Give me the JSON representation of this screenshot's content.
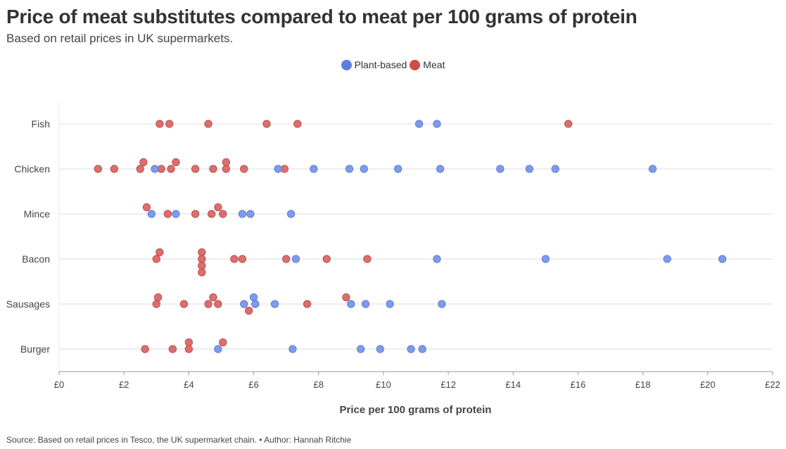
{
  "title": "Price of meat substitutes compared to meat per 100 grams of protein",
  "subtitle": "Based on retail prices in UK supermarkets.",
  "source": "Source: Based on retail prices in Tesco, the UK supermarket chain. • Author: Hannah Ritchie",
  "legend": [
    {
      "label": "Plant-based",
      "color": "#5b7fe0"
    },
    {
      "label": "Meat",
      "color": "#d04a4a"
    }
  ],
  "colors": {
    "plant": "#7e9aeb",
    "plant_stroke": "#5a78d6",
    "meat": "#dc6e6e",
    "meat_stroke": "#b84848",
    "grid": "#e8e8e8",
    "axis": "#999999"
  },
  "chart_data": {
    "type": "scatter",
    "title": "Price of meat substitutes compared to meat per 100 grams of protein",
    "xlabel": "Price per 100 grams of protein",
    "ylabel": "",
    "xlim": [
      0,
      22
    ],
    "x_ticks": [
      0,
      2,
      4,
      6,
      8,
      10,
      12,
      14,
      16,
      18,
      20,
      22
    ],
    "x_tick_labels": [
      "£0",
      "£2",
      "£4",
      "£6",
      "£8",
      "£10",
      "£12",
      "£14",
      "£16",
      "£18",
      "£20",
      "£22"
    ],
    "categories": [
      "Fish",
      "Chicken",
      "Mince",
      "Bacon",
      "Sausages",
      "Burger"
    ],
    "series": [
      {
        "name": "Meat",
        "points": [
          {
            "category": "Fish",
            "x": 3.1,
            "jitter": 0
          },
          {
            "category": "Fish",
            "x": 3.4,
            "jitter": 0
          },
          {
            "category": "Fish",
            "x": 4.6,
            "jitter": 0
          },
          {
            "category": "Fish",
            "x": 6.4,
            "jitter": 0
          },
          {
            "category": "Fish",
            "x": 7.35,
            "jitter": 0
          },
          {
            "category": "Fish",
            "x": 15.7,
            "jitter": 0
          },
          {
            "category": "Chicken",
            "x": 1.2,
            "jitter": 0
          },
          {
            "category": "Chicken",
            "x": 1.7,
            "jitter": 0
          },
          {
            "category": "Chicken",
            "x": 2.5,
            "jitter": 0
          },
          {
            "category": "Chicken",
            "x": 2.6,
            "jitter": -1
          },
          {
            "category": "Chicken",
            "x": 3.15,
            "jitter": 0
          },
          {
            "category": "Chicken",
            "x": 3.45,
            "jitter": 0
          },
          {
            "category": "Chicken",
            "x": 3.6,
            "jitter": -1
          },
          {
            "category": "Chicken",
            "x": 4.2,
            "jitter": 0
          },
          {
            "category": "Chicken",
            "x": 4.75,
            "jitter": 0
          },
          {
            "category": "Chicken",
            "x": 5.15,
            "jitter": 0
          },
          {
            "category": "Chicken",
            "x": 5.15,
            "jitter": -1
          },
          {
            "category": "Chicken",
            "x": 5.7,
            "jitter": 0
          },
          {
            "category": "Chicken",
            "x": 6.95,
            "jitter": 0
          },
          {
            "category": "Mince",
            "x": 2.7,
            "jitter": -1
          },
          {
            "category": "Mince",
            "x": 3.35,
            "jitter": 0
          },
          {
            "category": "Mince",
            "x": 4.2,
            "jitter": 0
          },
          {
            "category": "Mince",
            "x": 4.7,
            "jitter": 0
          },
          {
            "category": "Mince",
            "x": 4.9,
            "jitter": -1
          },
          {
            "category": "Mince",
            "x": 5.05,
            "jitter": 0
          },
          {
            "category": "Bacon",
            "x": 3.0,
            "jitter": 0
          },
          {
            "category": "Bacon",
            "x": 3.1,
            "jitter": -1
          },
          {
            "category": "Bacon",
            "x": 4.4,
            "jitter": -1
          },
          {
            "category": "Bacon",
            "x": 4.4,
            "jitter": 0
          },
          {
            "category": "Bacon",
            "x": 4.4,
            "jitter": 1
          },
          {
            "category": "Bacon",
            "x": 4.4,
            "jitter": 2
          },
          {
            "category": "Bacon",
            "x": 5.4,
            "jitter": 0
          },
          {
            "category": "Bacon",
            "x": 5.65,
            "jitter": 0
          },
          {
            "category": "Bacon",
            "x": 7.0,
            "jitter": 0
          },
          {
            "category": "Bacon",
            "x": 8.25,
            "jitter": 0
          },
          {
            "category": "Bacon",
            "x": 9.5,
            "jitter": 0
          },
          {
            "category": "Sausages",
            "x": 3.0,
            "jitter": 0
          },
          {
            "category": "Sausages",
            "x": 3.05,
            "jitter": -1
          },
          {
            "category": "Sausages",
            "x": 3.85,
            "jitter": 0
          },
          {
            "category": "Sausages",
            "x": 4.6,
            "jitter": 0
          },
          {
            "category": "Sausages",
            "x": 4.75,
            "jitter": -1
          },
          {
            "category": "Sausages",
            "x": 4.9,
            "jitter": 0
          },
          {
            "category": "Sausages",
            "x": 5.85,
            "jitter": 1
          },
          {
            "category": "Sausages",
            "x": 7.65,
            "jitter": 0
          },
          {
            "category": "Sausages",
            "x": 8.85,
            "jitter": -1
          },
          {
            "category": "Burger",
            "x": 2.65,
            "jitter": 0
          },
          {
            "category": "Burger",
            "x": 3.5,
            "jitter": 0
          },
          {
            "category": "Burger",
            "x": 4.0,
            "jitter": 0
          },
          {
            "category": "Burger",
            "x": 4.0,
            "jitter": -1
          },
          {
            "category": "Burger",
            "x": 5.05,
            "jitter": -1
          }
        ]
      },
      {
        "name": "Plant-based",
        "points": [
          {
            "category": "Fish",
            "x": 11.1,
            "jitter": 0
          },
          {
            "category": "Fish",
            "x": 11.65,
            "jitter": 0
          },
          {
            "category": "Chicken",
            "x": 2.95,
            "jitter": 0
          },
          {
            "category": "Chicken",
            "x": 6.75,
            "jitter": 0
          },
          {
            "category": "Chicken",
            "x": 7.85,
            "jitter": 0
          },
          {
            "category": "Chicken",
            "x": 8.95,
            "jitter": 0
          },
          {
            "category": "Chicken",
            "x": 9.4,
            "jitter": 0
          },
          {
            "category": "Chicken",
            "x": 10.45,
            "jitter": 0
          },
          {
            "category": "Chicken",
            "x": 11.75,
            "jitter": 0
          },
          {
            "category": "Chicken",
            "x": 13.6,
            "jitter": 0
          },
          {
            "category": "Chicken",
            "x": 14.5,
            "jitter": 0
          },
          {
            "category": "Chicken",
            "x": 15.3,
            "jitter": 0
          },
          {
            "category": "Chicken",
            "x": 18.3,
            "jitter": 0
          },
          {
            "category": "Mince",
            "x": 2.85,
            "jitter": 0
          },
          {
            "category": "Mince",
            "x": 3.6,
            "jitter": 0
          },
          {
            "category": "Mince",
            "x": 5.65,
            "jitter": 0
          },
          {
            "category": "Mince",
            "x": 5.9,
            "jitter": 0
          },
          {
            "category": "Mince",
            "x": 7.15,
            "jitter": 0
          },
          {
            "category": "Bacon",
            "x": 7.3,
            "jitter": 0
          },
          {
            "category": "Bacon",
            "x": 11.65,
            "jitter": 0
          },
          {
            "category": "Bacon",
            "x": 15.0,
            "jitter": 0
          },
          {
            "category": "Bacon",
            "x": 18.75,
            "jitter": 0
          },
          {
            "category": "Bacon",
            "x": 20.45,
            "jitter": 0
          },
          {
            "category": "Sausages",
            "x": 5.7,
            "jitter": 0
          },
          {
            "category": "Sausages",
            "x": 6.0,
            "jitter": -1
          },
          {
            "category": "Sausages",
            "x": 6.05,
            "jitter": 0
          },
          {
            "category": "Sausages",
            "x": 6.65,
            "jitter": 0
          },
          {
            "category": "Sausages",
            "x": 9.0,
            "jitter": 0
          },
          {
            "category": "Sausages",
            "x": 9.45,
            "jitter": 0
          },
          {
            "category": "Sausages",
            "x": 10.2,
            "jitter": 0
          },
          {
            "category": "Sausages",
            "x": 11.8,
            "jitter": 0
          },
          {
            "category": "Burger",
            "x": 4.9,
            "jitter": 0
          },
          {
            "category": "Burger",
            "x": 7.2,
            "jitter": 0
          },
          {
            "category": "Burger",
            "x": 9.3,
            "jitter": 0
          },
          {
            "category": "Burger",
            "x": 9.9,
            "jitter": 0
          },
          {
            "category": "Burger",
            "x": 10.85,
            "jitter": 0
          },
          {
            "category": "Burger",
            "x": 11.2,
            "jitter": 0
          }
        ]
      }
    ]
  }
}
